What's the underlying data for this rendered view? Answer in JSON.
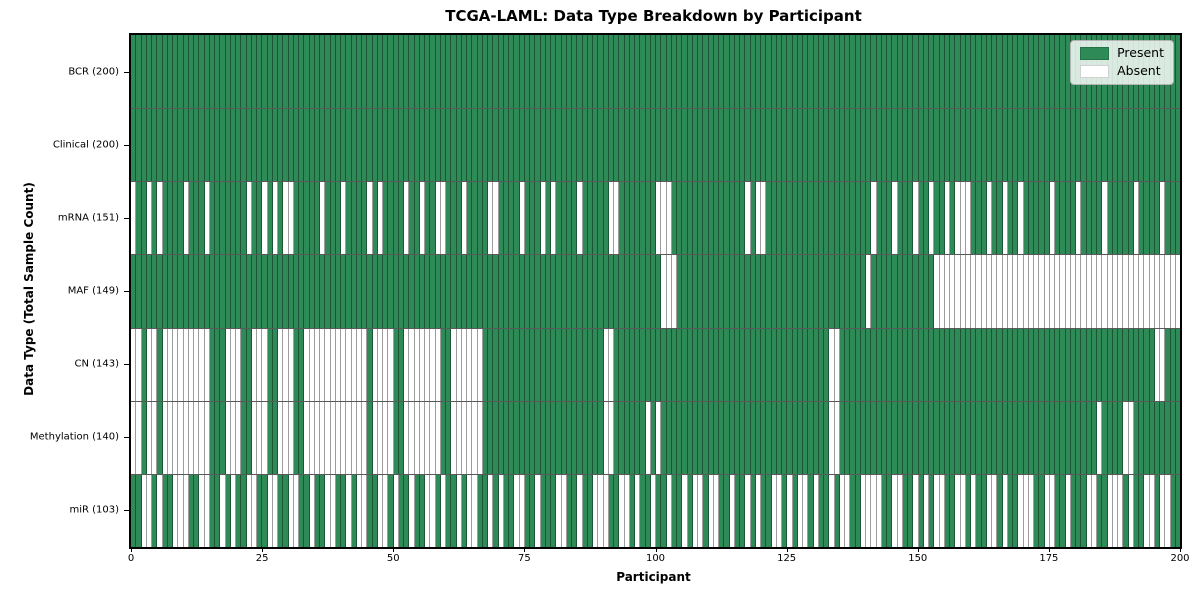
{
  "title": "TCGA-LAML: Data Type Breakdown by Participant",
  "x_axis": {
    "label": "Participant",
    "ticks": [
      0,
      25,
      50,
      75,
      100,
      125,
      150,
      175,
      200
    ],
    "range": [
      0,
      200
    ]
  },
  "y_axis": {
    "label": "Data Type (Total Sample Count)"
  },
  "legend": {
    "items": [
      {
        "label": "Present",
        "color": "#2e8b57"
      },
      {
        "label": "Absent",
        "color": "#ffffff"
      }
    ]
  },
  "colors": {
    "present": "#2e8b57",
    "absent": "#ffffff",
    "cell_edge": "rgba(0,0,0,0.38)"
  },
  "chart_data": {
    "type": "heatmap",
    "x_label": "Participant",
    "y_label": "Data Type (Total Sample Count)",
    "n_participants": 200,
    "value_encoding": {
      "1": "Present",
      "0": "Absent"
    },
    "legend_position": "upper right",
    "rows": [
      {
        "label": "BCR (200)",
        "data_type": "BCR",
        "present_count": 200,
        "pattern_blocks": [
          "1111111111",
          "1111111111",
          "1111111111",
          "1111111111",
          "1111111111",
          "1111111111",
          "1111111111",
          "1111111111",
          "1111111111",
          "1111111111",
          "1111111111",
          "1111111111",
          "1111111111",
          "1111111111",
          "1111111111",
          "1111111111",
          "1111111111",
          "1111111111",
          "1111111111",
          "1111111111"
        ]
      },
      {
        "label": "Clinical (200)",
        "data_type": "Clinical",
        "present_count": 200,
        "pattern_blocks": [
          "1111111111",
          "1111111111",
          "1111111111",
          "1111111111",
          "1111111111",
          "1111111111",
          "1111111111",
          "1111111111",
          "1111111111",
          "1111111111",
          "1111111111",
          "1111111111",
          "1111111111",
          "1111111111",
          "1111111111",
          "1111111111",
          "1111111111",
          "1111111111",
          "1111111111",
          "1111111111"
        ]
      },
      {
        "label": "mRNA (151)",
        "data_type": "mRNA",
        "present_count": 151,
        "pattern_blocks": [
          "0110101111",
          "0111011111",
          "1101101010",
          "0111110111",
          "0111101011",
          "1101101100",
          "1110111100",
          "1111011101",
          "0111101111",
          "1001111111",
          "0001111111",
          "1111111010",
          "0111111111",
          "1111111111",
          "1011101110",
          "1101101000",
          "1110110110",
          "1111101111",
          "0111101111",
          "1011110111"
        ]
      },
      {
        "label": "MAF (149)",
        "data_type": "MAF",
        "present_count": 149,
        "pattern_blocks": [
          "1111111111",
          "1111111111",
          "1111111111",
          "1111111111",
          "1111111111",
          "1111111111",
          "1111111111",
          "1111111111",
          "1111111111",
          "1111111111",
          "1000111111",
          "1111111111",
          "1111111111",
          "1111111111",
          "0111111111",
          "1110000000",
          "0000000000",
          "0000000000",
          "0000000000",
          "0000000000"
        ]
      },
      {
        "label": "CN (143)",
        "data_type": "CN",
        "present_count": 143,
        "pattern_blocks": [
          "0010010000",
          "0000011100",
          "0110001100",
          "0110000000",
          "0000010000",
          "1100000001",
          "1000000111",
          "1111111111",
          "1111111111",
          "0011111111",
          "1111111111",
          "1111111111",
          "1111111111",
          "1110011111",
          "1111111111",
          "1111111111",
          "1111111111",
          "1111111111",
          "1111111111",
          "1111100111"
        ]
      },
      {
        "label": "Methylation (140)",
        "data_type": "Methylation",
        "present_count": 140,
        "pattern_blocks": [
          "0010010000",
          "0000011100",
          "0110001100",
          "0110000000",
          "0000010000",
          "1100000001",
          "1000000111",
          "1111111111",
          "1111111111",
          "0011111101",
          "0111111111",
          "1111111111",
          "1111111111",
          "1110011111",
          "1111111111",
          "1111111111",
          "1111111111",
          "1111111111",
          "1111011110",
          "0111111111"
        ]
      },
      {
        "label": "miR (103)",
        "data_type": "miR",
        "present_count": 103,
        "pattern_blocks": [
          "1100101100",
          "0110011010",
          "1100110011",
          "0011011001",
          "1010011001",
          "0110110010",
          "1101001101",
          "0110011011",
          "1001101100",
          "0110010110",
          "1101101001",
          "0011011010",
          "1100101001",
          "0110100110",
          "0001100110",
          "1010011001",
          "0110010110",
          "0011001101",
          "1100110001",
          "0110010011"
        ]
      }
    ]
  }
}
